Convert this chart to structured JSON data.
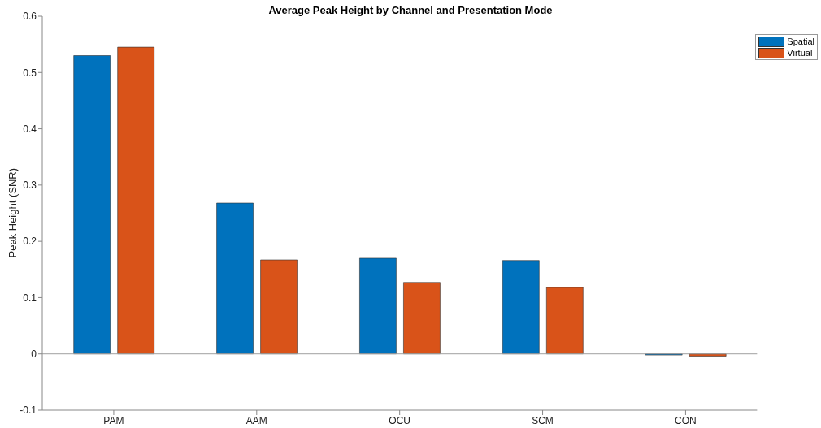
{
  "chart_data": {
    "type": "bar",
    "title": "Average Peak Height by Channel and Presentation Mode",
    "ylabel": "Peak Height (SNR)",
    "categories": [
      "PAM",
      "AAM",
      "OCU",
      "SCM",
      "CON"
    ],
    "series": [
      {
        "name": "Spatial",
        "color": "#0072bd",
        "values": [
          0.53,
          0.268,
          0.17,
          0.166,
          -0.002
        ]
      },
      {
        "name": "Virtual",
        "color": "#d95319",
        "values": [
          0.545,
          0.167,
          0.127,
          0.118,
          -0.004
        ]
      }
    ],
    "ylim": [
      -0.1,
      0.6
    ],
    "yticks": [
      -0.1,
      0,
      0.1,
      0.2,
      0.3,
      0.4,
      0.5,
      0.6
    ],
    "ref_lines": [
      {
        "axis": "y",
        "value": 0,
        "color": "#a0a0a0"
      }
    ],
    "legend": "top right",
    "grid": false
  }
}
